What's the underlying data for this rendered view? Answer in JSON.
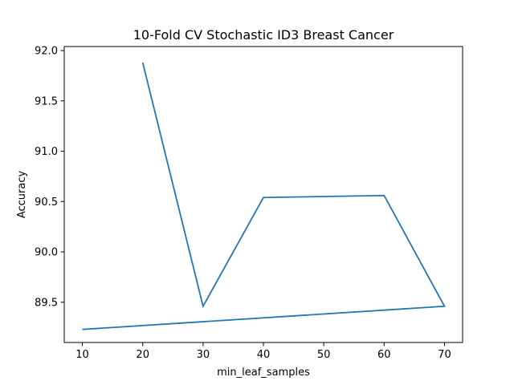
{
  "chart_data": {
    "type": "line",
    "title": "10-Fold CV Stochastic ID3 Breast Cancer",
    "xlabel": "min_leaf_samples",
    "ylabel": "Accuracy",
    "series": [
      {
        "x": [
          20,
          30,
          40,
          60,
          70,
          10
        ],
        "values": [
          91.88,
          89.46,
          90.54,
          90.56,
          89.46,
          89.23
        ],
        "color": "#1f77b4"
      }
    ],
    "xlim": [
      7,
      73
    ],
    "ylim": [
      89.1,
      92.04
    ],
    "xticks": [
      10,
      20,
      30,
      40,
      50,
      60,
      70
    ],
    "yticks": [
      89.5,
      90.0,
      90.5,
      91.0,
      91.5,
      92.0
    ],
    "xtick_labels": [
      "10",
      "20",
      "30",
      "40",
      "50",
      "60",
      "70"
    ],
    "ytick_labels": [
      "89.5",
      "90.0",
      "90.5",
      "91.0",
      "91.5",
      "92.0"
    ],
    "grid": false,
    "legend": false
  }
}
